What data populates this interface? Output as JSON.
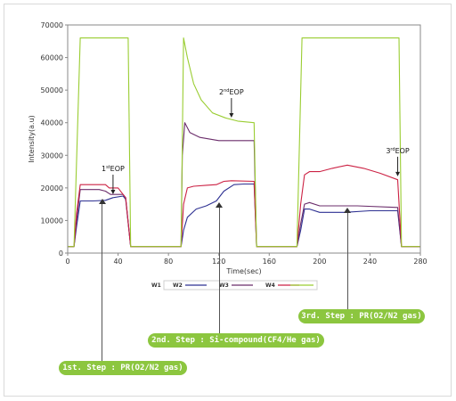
{
  "chart_data": {
    "type": "line",
    "xlabel": "Time(sec)",
    "ylabel": "Intensity(a.u)",
    "xlim": [
      0,
      280
    ],
    "ylim": [
      0,
      70000
    ],
    "x_ticks": [
      "0",
      "40",
      "80",
      "120",
      "160",
      "200",
      "240",
      "280"
    ],
    "y_ticks": [
      "0",
      "10000",
      "20000",
      "30000",
      "40000",
      "50000",
      "60000",
      "70000"
    ],
    "legend_title": "W1",
    "series": [
      {
        "name": "W2",
        "color": "#2e3192",
        "points": [
          [
            0,
            2000
          ],
          [
            5,
            2000
          ],
          [
            7,
            8000
          ],
          [
            10,
            16000
          ],
          [
            20,
            16000
          ],
          [
            30,
            16200
          ],
          [
            36,
            17000
          ],
          [
            44,
            17500
          ],
          [
            46,
            16500
          ],
          [
            50,
            2000
          ],
          [
            90,
            2000
          ],
          [
            92,
            7000
          ],
          [
            95,
            11000
          ],
          [
            102,
            13500
          ],
          [
            110,
            14500
          ],
          [
            118,
            16000
          ],
          [
            124,
            19000
          ],
          [
            132,
            21000
          ],
          [
            140,
            21200
          ],
          [
            148,
            21200
          ],
          [
            150,
            2000
          ],
          [
            182,
            2000
          ],
          [
            185,
            7000
          ],
          [
            188,
            13500
          ],
          [
            192,
            13500
          ],
          [
            200,
            12500
          ],
          [
            220,
            12500
          ],
          [
            240,
            13000
          ],
          [
            262,
            13000
          ],
          [
            265,
            2000
          ],
          [
            280,
            2000
          ]
        ]
      },
      {
        "name": "W3",
        "color": "#6b2d6b",
        "points": [
          [
            0,
            2000
          ],
          [
            5,
            2000
          ],
          [
            7,
            10000
          ],
          [
            10,
            19500
          ],
          [
            25,
            19500
          ],
          [
            30,
            19000
          ],
          [
            34,
            18000
          ],
          [
            44,
            18000
          ],
          [
            46,
            17000
          ],
          [
            50,
            2000
          ],
          [
            90,
            2000
          ],
          [
            91,
            30000
          ],
          [
            93,
            40000
          ],
          [
            97,
            37000
          ],
          [
            105,
            35500
          ],
          [
            120,
            34500
          ],
          [
            148,
            34500
          ],
          [
            150,
            2000
          ],
          [
            182,
            2000
          ],
          [
            185,
            9000
          ],
          [
            188,
            15000
          ],
          [
            192,
            15500
          ],
          [
            200,
            14500
          ],
          [
            230,
            14500
          ],
          [
            262,
            14000
          ],
          [
            265,
            2000
          ],
          [
            280,
            2000
          ]
        ]
      },
      {
        "name": "W4",
        "color": "#cc2244",
        "points": [
          [
            0,
            2000
          ],
          [
            5,
            2000
          ],
          [
            7,
            12000
          ],
          [
            10,
            21000
          ],
          [
            30,
            21000
          ],
          [
            33,
            20000
          ],
          [
            40,
            20000
          ],
          [
            44,
            18000
          ],
          [
            46,
            17000
          ],
          [
            50,
            2000
          ],
          [
            90,
            2000
          ],
          [
            92,
            15000
          ],
          [
            95,
            20000
          ],
          [
            100,
            20500
          ],
          [
            110,
            20800
          ],
          [
            118,
            21000
          ],
          [
            124,
            22000
          ],
          [
            130,
            22200
          ],
          [
            148,
            22000
          ],
          [
            150,
            2000
          ],
          [
            182,
            2000
          ],
          [
            185,
            15000
          ],
          [
            188,
            24000
          ],
          [
            192,
            25000
          ],
          [
            200,
            25000
          ],
          [
            210,
            26000
          ],
          [
            222,
            27000
          ],
          [
            235,
            26000
          ],
          [
            248,
            24500
          ],
          [
            262,
            22500
          ],
          [
            265,
            2000
          ],
          [
            280,
            2000
          ]
        ]
      },
      {
        "name": "W1",
        "color": "#9acd32",
        "points": [
          [
            0,
            2000
          ],
          [
            5,
            2000
          ],
          [
            10,
            66000
          ],
          [
            48,
            66000
          ],
          [
            50,
            2000
          ],
          [
            90,
            2000
          ],
          [
            92,
            66000
          ],
          [
            95,
            60000
          ],
          [
            100,
            52000
          ],
          [
            106,
            47000
          ],
          [
            115,
            43000
          ],
          [
            125,
            41500
          ],
          [
            135,
            40500
          ],
          [
            148,
            40000
          ],
          [
            150,
            2000
          ],
          [
            182,
            2000
          ],
          [
            186,
            66000
          ],
          [
            263,
            66000
          ],
          [
            265,
            2000
          ],
          [
            280,
            2000
          ]
        ]
      }
    ],
    "annotations": [
      {
        "text": "1st EOP",
        "sup": "st",
        "base": "1",
        "rest": "EOP",
        "x": 36,
        "y": 17500
      },
      {
        "text": "2nd EOP",
        "sup": "nd",
        "base": "2",
        "rest": "EOP",
        "x": 130,
        "y": 41000
      },
      {
        "text": "3rd EOP",
        "sup": "rd",
        "base": "3",
        "rest": "EOP",
        "x": 262,
        "y": 23000
      }
    ]
  },
  "steps": [
    {
      "label": "1st. Step : PR(O2/N2 gas)",
      "pointer_x": 27
    },
    {
      "label": "2nd. Step : Si-compound(CF4/He gas)",
      "pointer_x": 120
    },
    {
      "label": "3rd. Step : PR(O2/N2 gas)",
      "pointer_x": 222
    }
  ]
}
